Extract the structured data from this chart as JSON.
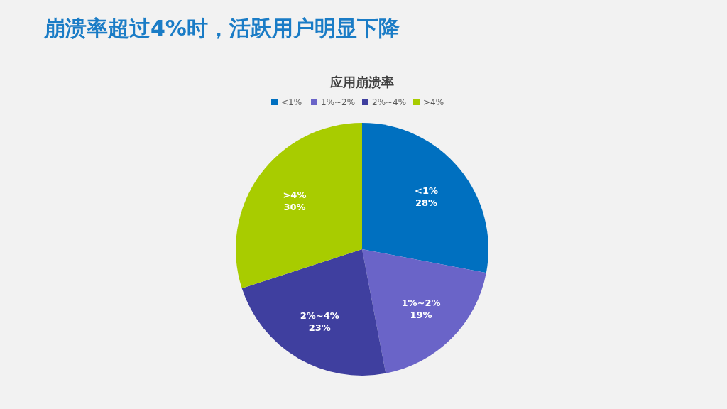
{
  "chart_data": {
    "type": "pie",
    "title": "崩溃率超过4%时，活跃用户明显下降",
    "subtitle": "应用崩溃率",
    "categories": [
      "<1%",
      "1%~2%",
      "2%~4%",
      ">4%"
    ],
    "values": [
      28,
      19,
      23,
      30
    ],
    "colors": [
      "#0070c0",
      "#6a64c8",
      "#3f3f9f",
      "#a8cc00"
    ],
    "value_labels": [
      "28%",
      "19%",
      "23%",
      "30%"
    ],
    "legend": "top"
  }
}
